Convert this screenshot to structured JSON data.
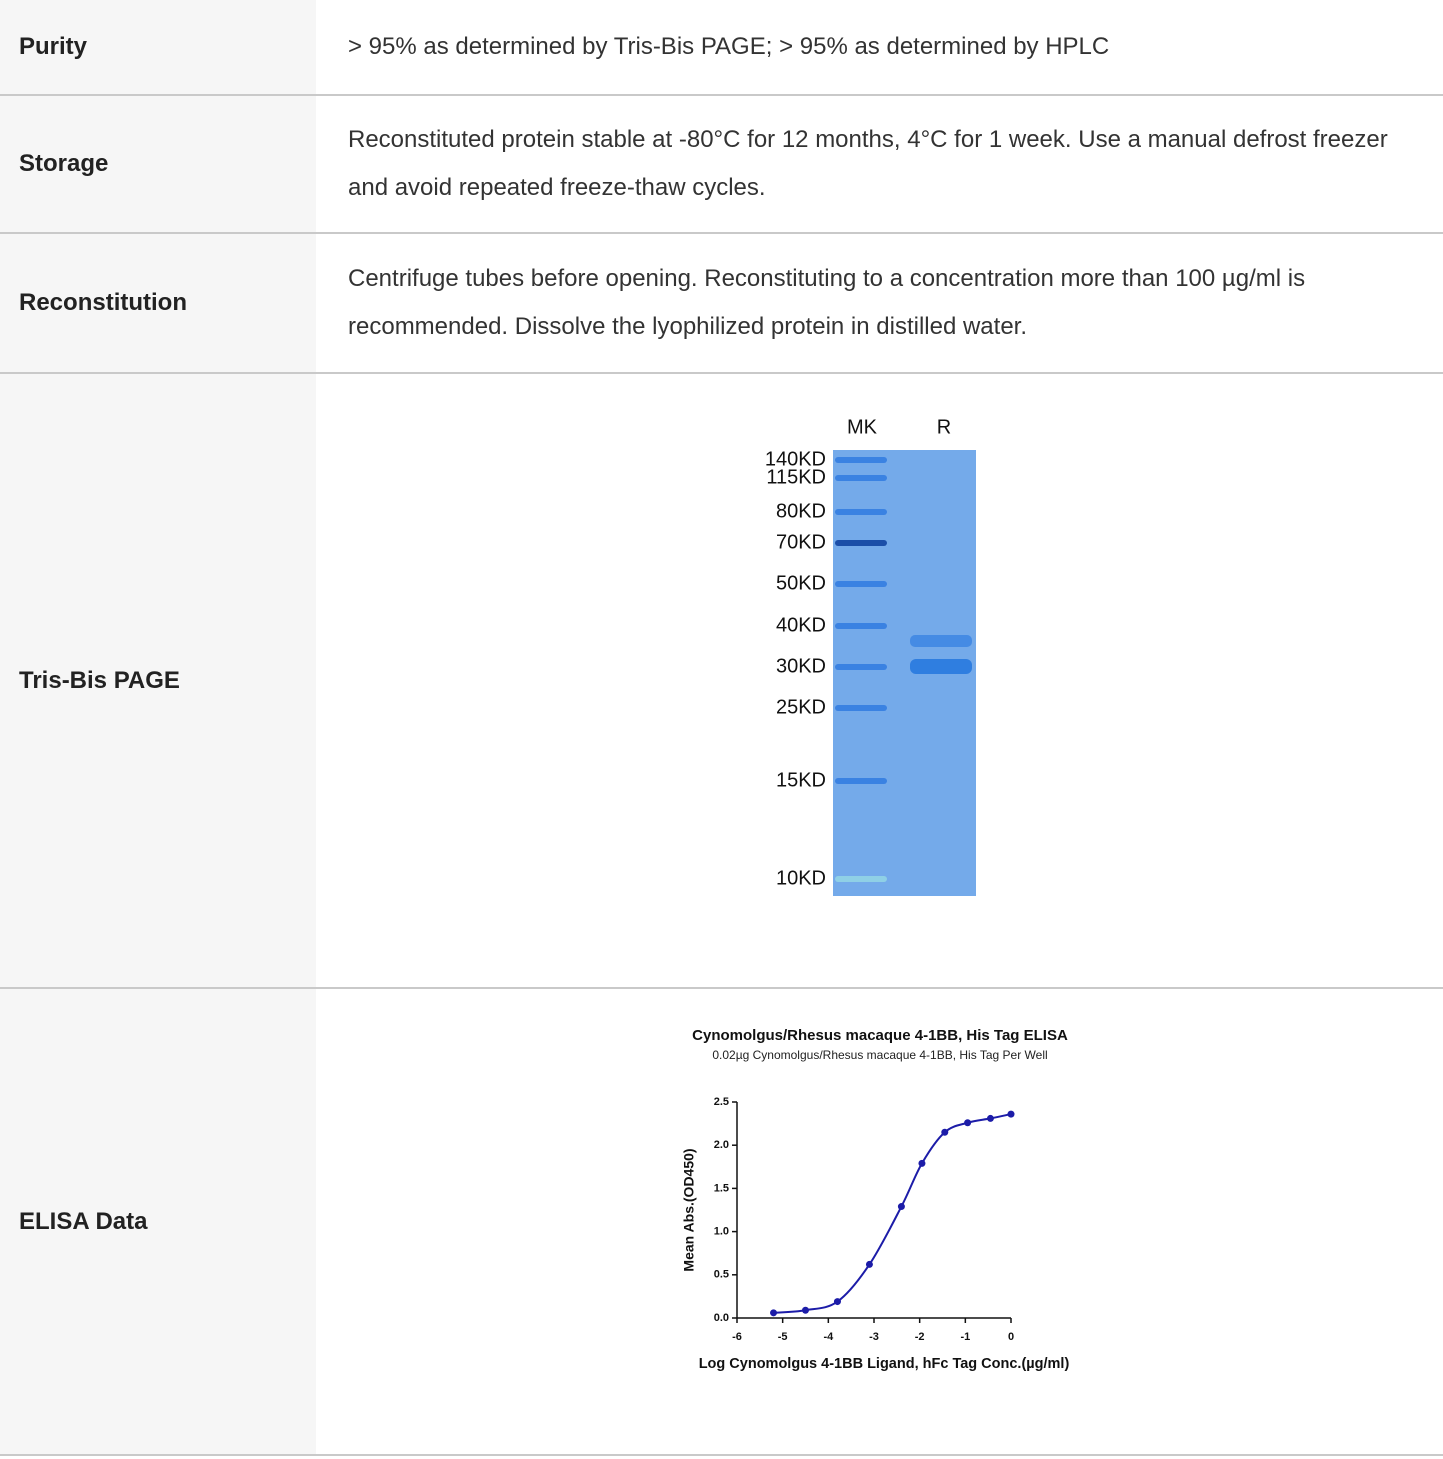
{
  "table": {
    "rows": [
      {
        "label": "Purity",
        "value": "> 95% as determined by Tris-Bis PAGE; > 95% as determined by HPLC"
      },
      {
        "label": "Storage",
        "value": "Reconstituted protein stable at -80°C for 12 months, 4°C for 1 week. Use a manual defrost freezer and avoid repeated freeze-thaw cycles."
      },
      {
        "label": "Reconstitution",
        "value": "Centrifuge tubes before opening. Reconstituting to a concentration more than 100 µg/ml is recommended. Dissolve the lyophilized protein in distilled water."
      },
      {
        "label": "Tris-Bis PAGE",
        "gel": {
          "lanes": [
            "MK",
            "R"
          ],
          "markers": [
            "140KD",
            "115KD",
            "80KD",
            "70KD",
            "50KD",
            "40KD",
            "30KD",
            "25KD",
            "15KD",
            "10KD"
          ]
        }
      },
      {
        "label": "ELISA Data",
        "chart": {
          "type": "scatter",
          "title": "Cynomolgus/Rhesus macaque 4-1BB, His Tag ELISA",
          "subtitle": "0.02µg Cynomolgus/Rhesus macaque 4-1BB, His Tag Per Well",
          "x_label": "Log Cynomolgus 4-1BB Ligand, hFc Tag Conc.(µg/ml)",
          "y_label": "Mean Abs.(OD450)",
          "color": "#1c1ca8",
          "x": [
            -5.2,
            -4.5,
            -3.8,
            -3.1,
            -2.4,
            -1.95,
            -1.45,
            -0.95,
            -0.45,
            0
          ],
          "values": [
            0.06,
            0.09,
            0.19,
            0.62,
            1.29,
            1.79,
            2.15,
            2.26,
            2.31,
            2.36
          ],
          "xlim": [
            -6,
            0
          ],
          "xticks": [
            -6,
            -5,
            -4,
            -3,
            -2,
            -1,
            0
          ],
          "ylim": [
            0,
            2.5
          ],
          "yticks": [
            {
              "value": 0,
              "label": "0.0"
            },
            0.5,
            {
              "value": 1,
              "label": "1.0"
            },
            1.5,
            {
              "value": 2,
              "label": "2.0"
            },
            2.5
          ]
        }
      }
    ]
  }
}
